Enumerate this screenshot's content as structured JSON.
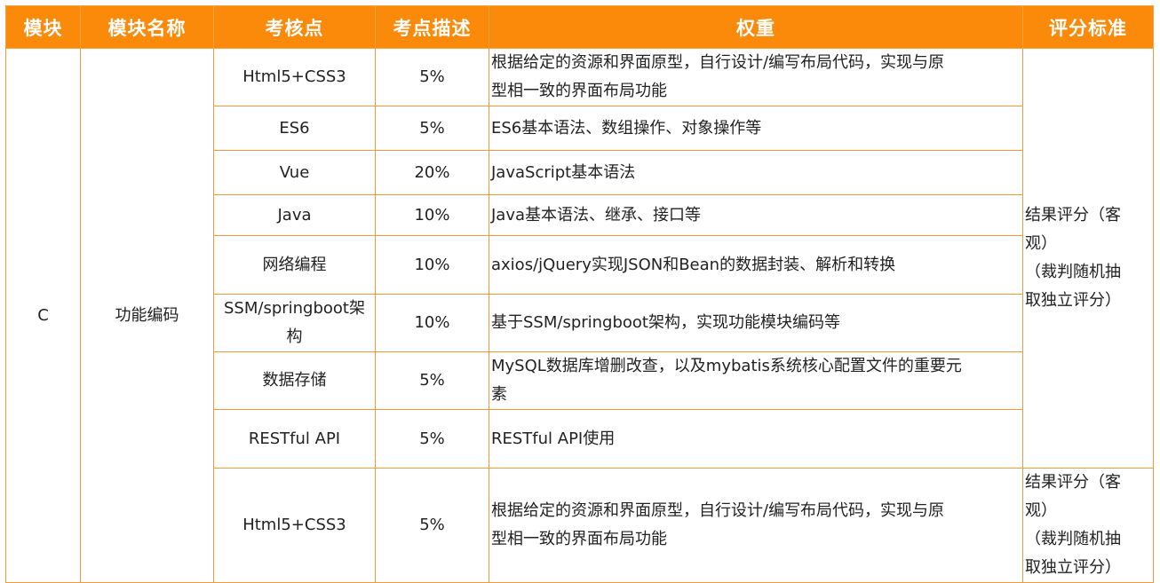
{
  "header": {
    "col_module": "模块",
    "col_module_name": "模块名称",
    "col_exam_point": "考核点",
    "col_point_desc": "考点描述",
    "col_weight": "权重",
    "col_standard": "评分标准"
  },
  "module": {
    "code": "C",
    "name": "功能编码"
  },
  "rows": [
    {
      "point": "Html5+CSS3",
      "percent": "5%",
      "desc_line1": "根据给定的资源和界面原型，自行设计/编写布局代码，实现与原",
      "desc_line2": "型相一致的界面布局功能"
    },
    {
      "point": "ES6",
      "percent": "5%",
      "desc_line1": "ES6基本语法、数组操作、对象操作等"
    },
    {
      "point": "Vue",
      "percent": "20%",
      "desc_line1": "JavaScript基本语法"
    },
    {
      "point": "Java",
      "percent": "10%",
      "desc_line1": "Java基本语法、继承、接口等"
    },
    {
      "point": "网络编程",
      "percent": "10%",
      "desc_line1": "axios/jQuery实现JSON和Bean的数据封装、解析和转换"
    },
    {
      "point": "SSM/springboot架构",
      "percent": "10%",
      "desc_line1": "基于SSM/springboot架构，实现功能模块编码等"
    },
    {
      "point": "数据存储",
      "percent": "5%",
      "desc_line1": "MySQL数据库增删改查，以及mybatis系统核心配置文件的重要元",
      "desc_line2": "素"
    },
    {
      "point": "RESTful API",
      "percent": "5%",
      "desc_line1": "RESTful API使用"
    },
    {
      "point": "Html5+CSS3",
      "percent": "5%",
      "desc_line1": "根据给定的资源和界面原型，自行设计/编写布局代码，实现与原",
      "desc_line2": "型相一致的界面布局功能"
    }
  ],
  "standard_a": {
    "line1": "结果评分（客",
    "line2": "观）",
    "line3": "（裁判随机抽",
    "line4": "取独立评分）"
  },
  "standard_b": {
    "line1": "结果评分（客",
    "line2": "观）",
    "line3": "（裁判随机抽",
    "line4": "取独立评分）"
  }
}
